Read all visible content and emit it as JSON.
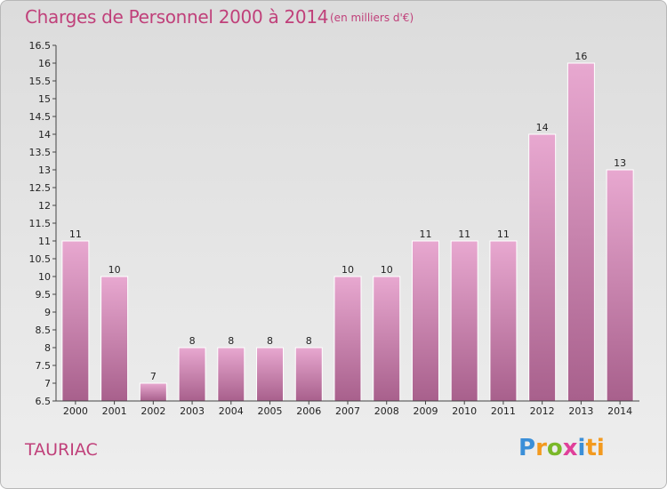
{
  "header": {
    "title": "Charges de Personnel 2000 à 2014",
    "subtitle": "(en milliers d'€)"
  },
  "footer": {
    "commune": "TAURIAC",
    "logo": [
      "P",
      "r",
      "o",
      "x",
      "i",
      "ti"
    ]
  },
  "colors": {
    "bar_top": "#e8a8d0",
    "bar_bottom": "#a8608c",
    "text_accent": "#c0407a"
  },
  "chart_data": {
    "type": "bar",
    "title": "Charges de Personnel 2000 à 2014",
    "subtitle": "(en milliers d'€)",
    "categories": [
      "2000",
      "2001",
      "2002",
      "2003",
      "2004",
      "2005",
      "2006",
      "2007",
      "2008",
      "2009",
      "2010",
      "2011",
      "2012",
      "2013",
      "2014"
    ],
    "values": [
      11,
      10,
      7,
      8,
      8,
      8,
      8,
      10,
      10,
      11,
      11,
      11,
      14,
      16,
      13
    ],
    "value_labels": [
      "11",
      "10",
      "7",
      "8",
      "8",
      "8",
      "8",
      "10",
      "10",
      "11",
      "11",
      "11",
      "14",
      "16",
      "13"
    ],
    "ylim": [
      6.5,
      16.5
    ],
    "yticks": [
      6.5,
      7,
      7.5,
      8,
      8.5,
      9,
      9.5,
      10,
      10.5,
      11,
      11.5,
      12,
      12.5,
      13,
      13.5,
      14,
      14.5,
      15,
      15.5,
      16,
      16.5
    ],
    "ytick_labels": [
      "6.5",
      "7",
      "7.5",
      "8",
      "8.5",
      "9",
      "9.5",
      "10",
      "10.5",
      "11",
      "11.5",
      "12",
      "12.5",
      "13",
      "13.5",
      "14",
      "14.5",
      "15",
      "15.5",
      "16",
      "16.5"
    ],
    "grid": false,
    "legend": "none"
  }
}
